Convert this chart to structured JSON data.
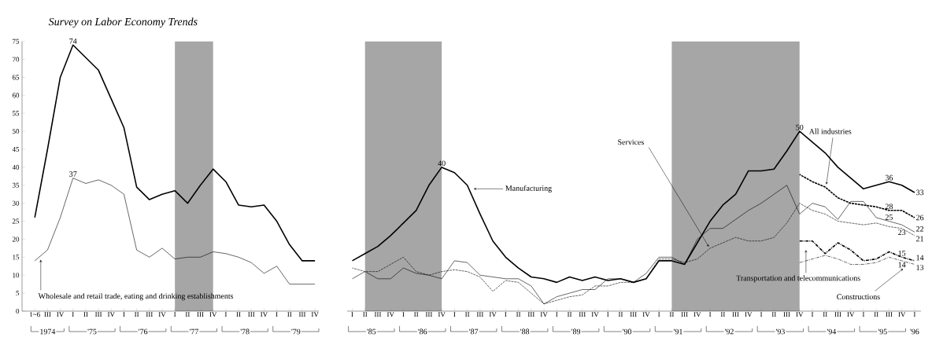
{
  "chart_data": [
    {
      "type": "line",
      "title": "Survey on Labor Economy Trends",
      "categories": [
        "1~6",
        "III",
        "IV",
        "I",
        "II",
        "III",
        "IV",
        "I",
        "II",
        "III",
        "IV",
        "I",
        "II",
        "III",
        "IV",
        "I",
        "II",
        "III",
        "IV",
        "I",
        "II",
        "III",
        "IV"
      ],
      "annotations": [
        "1974",
        "'75",
        "'76",
        "'77",
        "'78",
        "'79"
      ],
      "ylim": [
        0,
        75
      ],
      "yticks": [
        0,
        5,
        10,
        15,
        20,
        25,
        30,
        35,
        40,
        45,
        50,
        55,
        60,
        65,
        70,
        75
      ],
      "series": [
        {
          "color": "#000000",
          "line_style": "solid",
          "values": [
            26,
            45,
            65,
            74,
            70.5,
            67,
            59,
            51,
            34.5,
            31,
            32.5,
            33.5,
            30,
            35,
            39.5,
            36,
            29.5,
            29,
            29.5,
            25,
            18.5,
            14,
            14
          ],
          "value_labels": [
            null,
            null,
            null,
            "74",
            null,
            null,
            null,
            null,
            null,
            null,
            null,
            null,
            null,
            null,
            null,
            null,
            null,
            null,
            null,
            null,
            null,
            null,
            null
          ]
        },
        {
          "name": "Wholesale and retail trade, eating and drinking establishments",
          "color": "#000000",
          "line_style": "solid",
          "values": [
            14,
            17,
            26,
            37,
            35.5,
            36.5,
            35,
            32.5,
            17,
            15,
            17.5,
            14.5,
            15,
            15,
            16.5,
            16,
            15,
            13.5,
            10.5,
            12.5,
            7.5,
            7.5,
            7.5
          ],
          "value_labels": [
            null,
            null,
            null,
            "37",
            null,
            null,
            null,
            null,
            null,
            null,
            null,
            null,
            null,
            null,
            null,
            null,
            null,
            null,
            null,
            null,
            null,
            null,
            null
          ]
        }
      ]
    },
    {
      "type": "line",
      "categories": [
        "I",
        "II",
        "III",
        "IV",
        "I",
        "II",
        "III",
        "IV",
        "I",
        "II",
        "III",
        "IV",
        "I",
        "II",
        "III",
        "IV",
        "I",
        "II",
        "III",
        "IV",
        "I",
        "II",
        "III",
        "IV",
        "I",
        "II",
        "III",
        "IV",
        "I",
        "II",
        "III",
        "IV",
        "I",
        "II",
        "III",
        "IV",
        "I",
        "II",
        "III",
        "IV",
        "I",
        "II",
        "III",
        "IV",
        "I"
      ],
      "annotations": [
        "'85",
        "'86",
        "'87",
        "'88",
        "'89",
        "'90",
        "'91",
        "'92",
        "'93",
        "'94",
        "'95",
        "'96"
      ],
      "ylim": [
        0,
        75
      ],
      "tick_labels": "x",
      "series": [
        {
          "name": "Manufacturing",
          "color": "#000000",
          "line_style": "solid",
          "values": [
            14,
            16,
            18,
            21,
            24.5,
            28,
            35,
            40,
            38.5,
            35,
            27,
            19.5,
            15,
            12,
            9.5,
            9,
            8,
            9.5,
            8.5,
            9.5,
            8.5,
            9,
            8,
            9,
            14,
            14,
            13,
            19,
            25,
            29.5,
            32.5,
            39,
            39,
            39.5,
            44.5,
            50,
            47,
            44,
            40,
            37,
            34,
            35,
            36,
            35,
            33
          ],
          "value_labels": [
            null,
            null,
            null,
            null,
            null,
            null,
            null,
            "40",
            null,
            null,
            null,
            null,
            null,
            null,
            null,
            null,
            null,
            null,
            null,
            null,
            null,
            null,
            null,
            null,
            null,
            null,
            null,
            null,
            null,
            null,
            null,
            null,
            null,
            null,
            null,
            "50",
            null,
            null,
            null,
            null,
            null,
            null,
            "36",
            null,
            "33"
          ]
        },
        {
          "color": "#000000",
          "line_style": "solid",
          "values": [
            9,
            11,
            9,
            9,
            12,
            10.5,
            10,
            9,
            14,
            13.5,
            10,
            9.5,
            9,
            9,
            7,
            2,
            4,
            5,
            6,
            6,
            9,
            9,
            8,
            10.5,
            15,
            15,
            13,
            20,
            23,
            23,
            25.5,
            28,
            30,
            32.5,
            35,
            27,
            30,
            29,
            25.5,
            30.5,
            30.5,
            26,
            25,
            24,
            22
          ],
          "value_labels": [
            null,
            null,
            null,
            null,
            null,
            null,
            null,
            null,
            null,
            null,
            null,
            null,
            null,
            null,
            null,
            null,
            null,
            null,
            null,
            null,
            null,
            null,
            null,
            null,
            null,
            null,
            null,
            null,
            null,
            null,
            null,
            null,
            null,
            null,
            null,
            null,
            null,
            null,
            null,
            null,
            null,
            null,
            "25",
            null,
            "22"
          ]
        },
        {
          "name": "Services",
          "color": "#000000",
          "line_style": "dashed",
          "values": [
            12,
            11,
            11,
            13,
            15,
            11,
            10,
            11,
            11.5,
            11,
            9.5,
            5.5,
            8.5,
            8,
            5,
            2,
            3,
            4,
            4.5,
            7,
            7,
            8,
            8,
            9,
            14.5,
            14.5,
            13.5,
            14.5,
            17.5,
            19,
            20.5,
            19.5,
            19.5,
            20.5,
            24.5,
            30,
            28,
            27,
            25,
            24.5,
            24,
            24.5,
            23.5,
            23,
            21
          ],
          "value_labels": [
            null,
            null,
            null,
            null,
            null,
            null,
            null,
            null,
            null,
            null,
            null,
            null,
            null,
            null,
            null,
            null,
            null,
            null,
            null,
            null,
            null,
            null,
            null,
            null,
            null,
            null,
            null,
            null,
            null,
            null,
            null,
            null,
            null,
            null,
            null,
            null,
            null,
            null,
            null,
            null,
            null,
            null,
            null,
            "23",
            "21"
          ]
        },
        {
          "name": "All industries",
          "color": "#000000",
          "line_style": "dashed",
          "values": [
            null,
            null,
            null,
            null,
            null,
            null,
            null,
            null,
            null,
            null,
            null,
            null,
            null,
            null,
            null,
            null,
            null,
            null,
            null,
            null,
            null,
            null,
            null,
            null,
            null,
            null,
            null,
            null,
            null,
            null,
            null,
            null,
            null,
            null,
            null,
            38,
            36,
            34.5,
            31.5,
            30,
            29.5,
            29,
            28,
            28,
            26
          ],
          "value_labels": [
            null,
            null,
            null,
            null,
            null,
            null,
            null,
            null,
            null,
            null,
            null,
            null,
            null,
            null,
            null,
            null,
            null,
            null,
            null,
            null,
            null,
            null,
            null,
            null,
            null,
            null,
            null,
            null,
            null,
            null,
            null,
            null,
            null,
            null,
            null,
            null,
            null,
            null,
            null,
            null,
            null,
            null,
            "28",
            null,
            "26"
          ]
        },
        {
          "name": "Transportation and telecommunications",
          "color": "#000000",
          "line_style": "dashdot",
          "values": [
            null,
            null,
            null,
            null,
            null,
            null,
            null,
            null,
            null,
            null,
            null,
            null,
            null,
            null,
            null,
            null,
            null,
            null,
            null,
            null,
            null,
            null,
            null,
            null,
            null,
            null,
            null,
            null,
            null,
            null,
            null,
            null,
            null,
            null,
            null,
            19.5,
            19.5,
            16,
            19,
            17,
            14,
            14.5,
            16.5,
            15,
            14
          ],
          "value_labels": [
            null,
            null,
            null,
            null,
            null,
            null,
            null,
            null,
            null,
            null,
            null,
            null,
            null,
            null,
            null,
            null,
            null,
            null,
            null,
            null,
            null,
            null,
            null,
            null,
            null,
            null,
            null,
            null,
            null,
            null,
            null,
            null,
            null,
            null,
            null,
            null,
            null,
            null,
            null,
            null,
            null,
            null,
            null,
            "15",
            "14"
          ]
        },
        {
          "name": "Constructions",
          "color": "#000000",
          "line_style": "dashdot",
          "values": [
            null,
            null,
            null,
            null,
            null,
            null,
            null,
            null,
            null,
            null,
            null,
            null,
            null,
            null,
            null,
            null,
            null,
            null,
            null,
            null,
            null,
            null,
            null,
            null,
            null,
            null,
            null,
            null,
            null,
            null,
            null,
            null,
            null,
            null,
            null,
            13.5,
            14.5,
            15.5,
            14.5,
            13,
            13,
            13.5,
            15,
            14,
            13
          ],
          "value_labels": [
            null,
            null,
            null,
            null,
            null,
            null,
            null,
            null,
            null,
            null,
            null,
            null,
            null,
            null,
            null,
            null,
            null,
            null,
            null,
            null,
            null,
            null,
            null,
            null,
            null,
            null,
            null,
            null,
            null,
            null,
            null,
            null,
            null,
            null,
            null,
            null,
            null,
            null,
            null,
            null,
            null,
            null,
            null,
            "14",
            "13"
          ]
        }
      ]
    }
  ]
}
